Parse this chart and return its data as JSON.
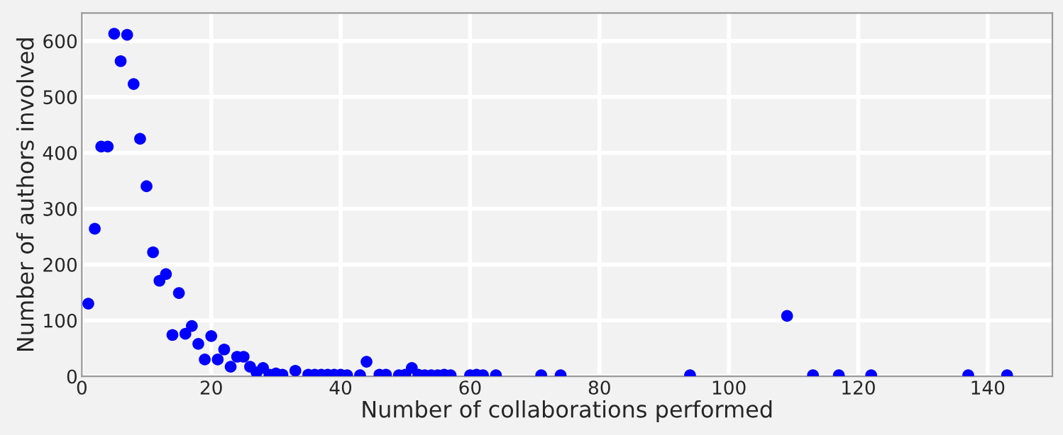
{
  "chart_data": {
    "type": "scatter",
    "xlabel": "Number of collaborations performed",
    "ylabel": "Number of authors involved",
    "x": [
      1,
      2,
      3,
      4,
      5,
      6,
      7,
      8,
      9,
      10,
      11,
      12,
      13,
      14,
      15,
      16,
      17,
      18,
      19,
      20,
      21,
      22,
      23,
      24,
      25,
      26,
      27,
      28,
      29,
      30,
      31,
      33,
      35,
      36,
      37,
      38,
      39,
      40,
      41,
      43,
      44,
      46,
      47,
      49,
      50,
      51,
      52,
      53,
      54,
      55,
      56,
      57,
      60,
      61,
      62,
      64,
      71,
      74,
      94,
      109,
      113,
      117,
      122,
      137,
      143
    ],
    "series": [
      {
        "color": "#0000ff",
        "values": [
          130,
          264,
          411,
          411,
          613,
          564,
          611,
          523,
          425,
          340,
          222,
          171,
          183,
          74,
          149,
          76,
          90,
          58,
          30,
          72,
          30,
          48,
          17,
          35,
          35,
          17,
          7,
          15,
          3,
          5,
          3,
          10,
          3,
          3,
          3,
          3,
          3,
          3,
          2,
          2,
          26,
          3,
          3,
          2,
          3,
          15,
          3,
          2,
          2,
          2,
          3,
          2,
          2,
          3,
          2,
          2,
          2,
          2,
          2,
          108,
          2,
          2,
          2,
          2,
          2
        ]
      }
    ],
    "xlim": [
      0,
      150
    ],
    "xticks": [
      0,
      20,
      40,
      60,
      80,
      100,
      120,
      140
    ],
    "ylim": [
      0,
      650
    ],
    "yticks": [
      0,
      100,
      200,
      300,
      400,
      500,
      600
    ],
    "grid": true,
    "marker": "circle"
  }
}
